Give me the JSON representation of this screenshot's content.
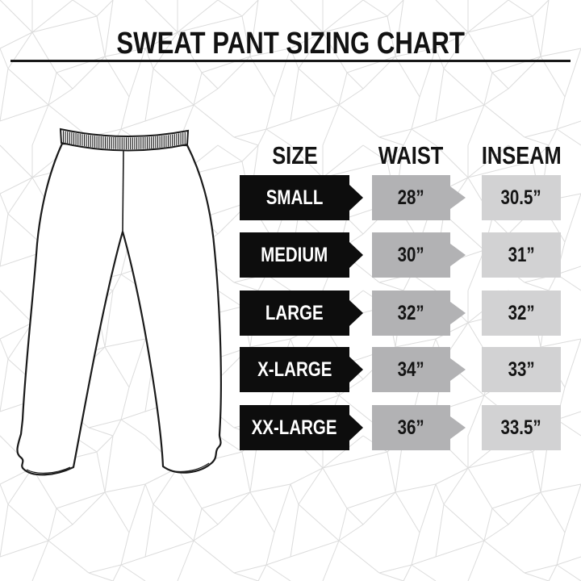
{
  "title": "SWEAT PANT SIZING CHART",
  "illustration": {
    "name": "sweatpants-outline-illustration"
  },
  "colors": {
    "background": "#ffffff",
    "pattern_line": "#dcdcdc",
    "size_badge": "#0d0d0d",
    "waist_box": "#b2b2b4",
    "inseam_box": "#d2d2d3",
    "text_dark": "#131313",
    "text_light": "#ffffff"
  },
  "table": {
    "headers": {
      "size": "SIZE",
      "waist": "WAIST",
      "inseam": "INSEAM"
    },
    "rows": [
      {
        "size": "SMALL",
        "waist": "28”",
        "inseam": "30.5”"
      },
      {
        "size": "MEDIUM",
        "waist": "30”",
        "inseam": "31”"
      },
      {
        "size": "LARGE",
        "waist": "32”",
        "inseam": "32”"
      },
      {
        "size": "X-LARGE",
        "waist": "34”",
        "inseam": "33”"
      },
      {
        "size": "XX-LARGE",
        "waist": "36”",
        "inseam": "33.5”"
      }
    ]
  },
  "chart_data": {
    "type": "table",
    "title": "SWEAT PANT SIZING CHART",
    "columns": [
      "SIZE",
      "WAIST",
      "INSEAM"
    ],
    "rows": [
      [
        "SMALL",
        "28”",
        "30.5”"
      ],
      [
        "MEDIUM",
        "30”",
        "31”"
      ],
      [
        "LARGE",
        "32”",
        "32”"
      ],
      [
        "X-LARGE",
        "34”",
        "33”"
      ],
      [
        "XX-LARGE",
        "36”",
        "33.5”"
      ]
    ],
    "units": "inches"
  }
}
